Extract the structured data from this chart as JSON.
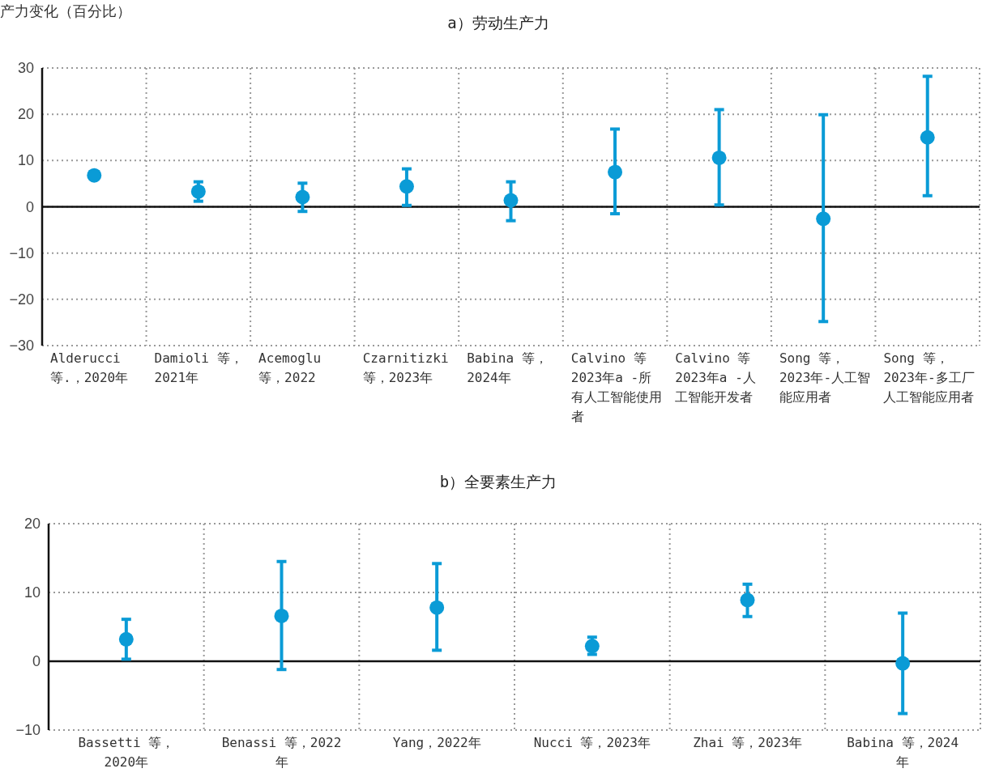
{
  "chart_data": [
    {
      "type": "scatter",
      "title": "a）劳动生产力",
      "annotations": [
        "产力变化（百分比）"
      ],
      "categories": [
        "Alderucci 等.，2020年",
        "Damioli 等，2021年",
        "Acemoglu 等，2022",
        "Czarnitizki 等，2023年",
        "Babina 等，2024年",
        "Calvino 等 2023年a -所有人工智能使用者",
        "Calvino 等 2023年a -人工智能开发者",
        "Song 等，2023年-人工智能应用者",
        "Song 等，2023年-多工厂人工智能应用者"
      ],
      "values": [
        6.8,
        3.3,
        2.1,
        4.4,
        1.4,
        7.5,
        10.6,
        -2.6,
        15.0
      ],
      "errors": [
        null,
        [
          1.2,
          5.4
        ],
        [
          -1.0,
          5.1
        ],
        [
          0.3,
          8.2
        ],
        [
          -3.0,
          5.4
        ],
        [
          -1.5,
          16.8
        ],
        [
          0.4,
          21.0
        ],
        [
          -24.8,
          19.9
        ],
        [
          2.4,
          28.2
        ]
      ],
      "color": "#0a9bd6",
      "marker": "circle",
      "grid": true,
      "ylim": [
        -30,
        30
      ],
      "yticks": [
        -30,
        -20,
        -10,
        0,
        10,
        20,
        30
      ]
    },
    {
      "type": "scatter",
      "title": "b）全要素生产力",
      "categories": [
        "Bassetti 等，2020年",
        "Benassi 等，2022年",
        "Yang，2022年",
        "Nucci 等，2023年",
        "Zhai 等，2023年",
        "Babina 等，2024年"
      ],
      "values": [
        3.2,
        6.6,
        7.8,
        2.2,
        8.9,
        -0.3
      ],
      "errors": [
        [
          0.3,
          6.1
        ],
        [
          -1.2,
          14.5
        ],
        [
          1.6,
          14.2
        ],
        [
          1.0,
          3.5
        ],
        [
          6.5,
          11.2
        ],
        [
          -7.6,
          7.0
        ]
      ],
      "color": "#0a9bd6",
      "marker": "circle",
      "grid": true,
      "ylim": [
        -10,
        20
      ],
      "yticks": [
        -10,
        0,
        10,
        20
      ]
    }
  ]
}
